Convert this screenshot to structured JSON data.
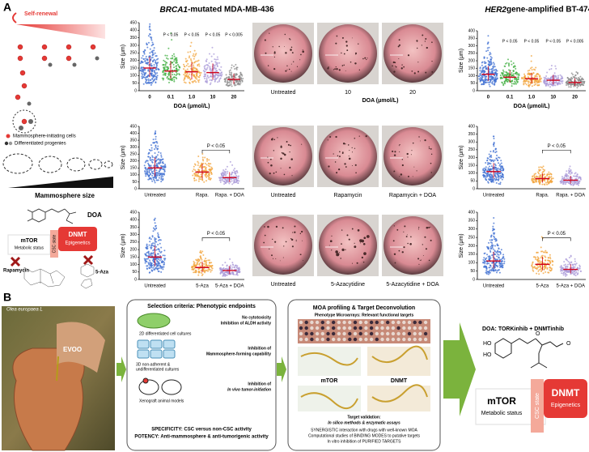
{
  "panel_a": {
    "label": "A",
    "schematic": {
      "self_renewal": "Self-renewal",
      "legend": [
        "Mammosphere-initiating cells",
        "Differentiated progenies"
      ],
      "size_label": "Mammosphere size",
      "doa": "DOA",
      "mtor": "mTOR",
      "mtor_sub": "Metabolic status",
      "csc": "CSC state",
      "dnmt": "DNMT",
      "dnmt_sub": "Epigenetics",
      "rapamycin": "Rapamycin",
      "aza": "5-Aza"
    },
    "brca1": {
      "title_gene": "BRCA1",
      "title_rest": "-mutated MDA-MB-436",
      "plots": [
        {
          "ylabel": "Size (μm)",
          "ylim": [
            0,
            450
          ],
          "yticks": [
            0,
            50,
            100,
            150,
            200,
            250,
            300,
            350,
            400,
            450
          ],
          "categories": [
            "0",
            "0.1",
            "1.0",
            "10",
            "20"
          ],
          "colors": [
            "#3f6fd1",
            "#3fae3f",
            "#f2a33a",
            "#a99ad8",
            "#8a8a8a"
          ],
          "medians": [
            150,
            130,
            125,
            120,
            75
          ],
          "pvalues": [
            null,
            "P < 0.05",
            "P < 0.05",
            "P < 0.05",
            "P < 0.005"
          ],
          "xlabel": "DOA (μmol/L)"
        },
        {
          "ylabel": "Size (μm)",
          "ylim": [
            0,
            450
          ],
          "yticks": [
            0,
            50,
            100,
            150,
            200,
            250,
            300,
            350,
            400,
            450
          ],
          "categories": [
            "Untreated",
            "Rapa.",
            "Rapa. + DOA"
          ],
          "colors": [
            "#3f6fd1",
            "#f2a33a",
            "#a99ad8"
          ],
          "medians": [
            150,
            120,
            80
          ],
          "comparison": "P < 0.05"
        },
        {
          "ylabel": "Size (μm)",
          "ylim": [
            0,
            450
          ],
          "yticks": [
            0,
            50,
            100,
            150,
            200,
            250,
            300,
            350,
            400,
            450
          ],
          "categories": [
            "Untreated",
            "5-Aza",
            "5-Aza + DOA"
          ],
          "colors": [
            "#3f6fd1",
            "#f2a33a",
            "#a99ad8"
          ],
          "medians": [
            150,
            80,
            60
          ],
          "comparison": "P < 0.05"
        }
      ]
    },
    "photos": [
      {
        "labels": [
          "Untreated",
          "10",
          "20"
        ],
        "xlabel": "DOA (μmol/L)"
      },
      {
        "labels": [
          "Untreated",
          "Rapamycin",
          "Rapamycin + DOA"
        ]
      },
      {
        "labels": [
          "Untreated",
          "5-Azacytidine",
          "5-Azacytidine + DOA"
        ]
      }
    ],
    "her2": {
      "title_gene": "HER2",
      "title_rest": " gene-amplified BT-474",
      "plots": [
        {
          "ylabel": "Size (μm)",
          "ylim": [
            0,
            400
          ],
          "yticks": [
            0,
            50,
            100,
            150,
            200,
            250,
            300,
            350,
            400
          ],
          "categories": [
            "0",
            "0.1",
            "1.0",
            "10",
            "20"
          ],
          "colors": [
            "#3f6fd1",
            "#3fae3f",
            "#f2a33a",
            "#a99ad8",
            "#8a8a8a"
          ],
          "medians": [
            110,
            90,
            80,
            70,
            55
          ],
          "pvalues": [
            null,
            "P < 0.05",
            "P < 0.05",
            "P < 0.05",
            "P < 0.005"
          ],
          "xlabel": "DOA (μmol/L)"
        },
        {
          "ylabel": "Size (μm)",
          "ylim": [
            0,
            400
          ],
          "yticks": [
            0,
            50,
            100,
            150,
            200,
            250,
            300,
            350,
            400
          ],
          "categories": [
            "Untreated",
            "Rapa.",
            "Rapa. + DOA"
          ],
          "colors": [
            "#3f6fd1",
            "#f2a33a",
            "#a99ad8"
          ],
          "medians": [
            110,
            65,
            55
          ],
          "comparison": "P < 0.05"
        },
        {
          "ylabel": "Size (μm)",
          "ylim": [
            0,
            400
          ],
          "yticks": [
            0,
            50,
            100,
            150,
            200,
            250,
            300,
            350,
            400
          ],
          "categories": [
            "Untreated",
            "5-Aza",
            "5-Aza + DOA"
          ],
          "colors": [
            "#3f6fd1",
            "#f2a33a",
            "#a99ad8"
          ],
          "medians": [
            110,
            90,
            60
          ],
          "comparison": "P < 0.05"
        }
      ]
    }
  },
  "panel_b": {
    "label": "B",
    "photo": {
      "species": "Olea europaea L",
      "product": "EVOO"
    },
    "selection": {
      "title": "Selection criteria: Phenotypic endpoints",
      "items": [
        {
          "model": "2D differentiated cell cultures",
          "endpoint": [
            "No cytotoxicity",
            "Inhibition of ALDH activity"
          ]
        },
        {
          "model": "3D non-adherent &",
          "model2": "undifferentiated cultures",
          "endpoint": [
            "Inhibition of",
            "Mammosphere-forming capability"
          ]
        },
        {
          "model": "Xenograft animal models",
          "endpoint": [
            "Inhibition of",
            "In vivo tumor-initiation"
          ]
        }
      ],
      "specificity": "SPECIFICITY: CSC versus non-CSC activity",
      "potency": "POTENCY: Anti-mammosphere & anti-tumorigenic activity"
    },
    "moa": {
      "title": "MOA profiling & Target Deconvolution",
      "microarray": "Phenotype Microarrays: Relevant functional targets",
      "targets": [
        "mTOR",
        "DNMT"
      ],
      "validation": "Target validation:",
      "validation_sub": "In silico methods & enzymatic assays",
      "lines": [
        "SYNERGISTIC interaction with drugs with well-known MOA",
        "Computational studies of BINDING MODES to putative targets",
        "In vitro inhibition of PURIFIED TARGETS"
      ]
    },
    "result": {
      "title": "DOA: TORKinhib + DNMTinhib",
      "atoms": [
        "HO",
        "HO",
        "O",
        "O"
      ],
      "mtor": "mTOR",
      "mtor_sub": "Metabolic status",
      "csc": "CSC state",
      "dnmt": "DNMT",
      "dnmt_sub": "Epigenetics"
    }
  }
}
